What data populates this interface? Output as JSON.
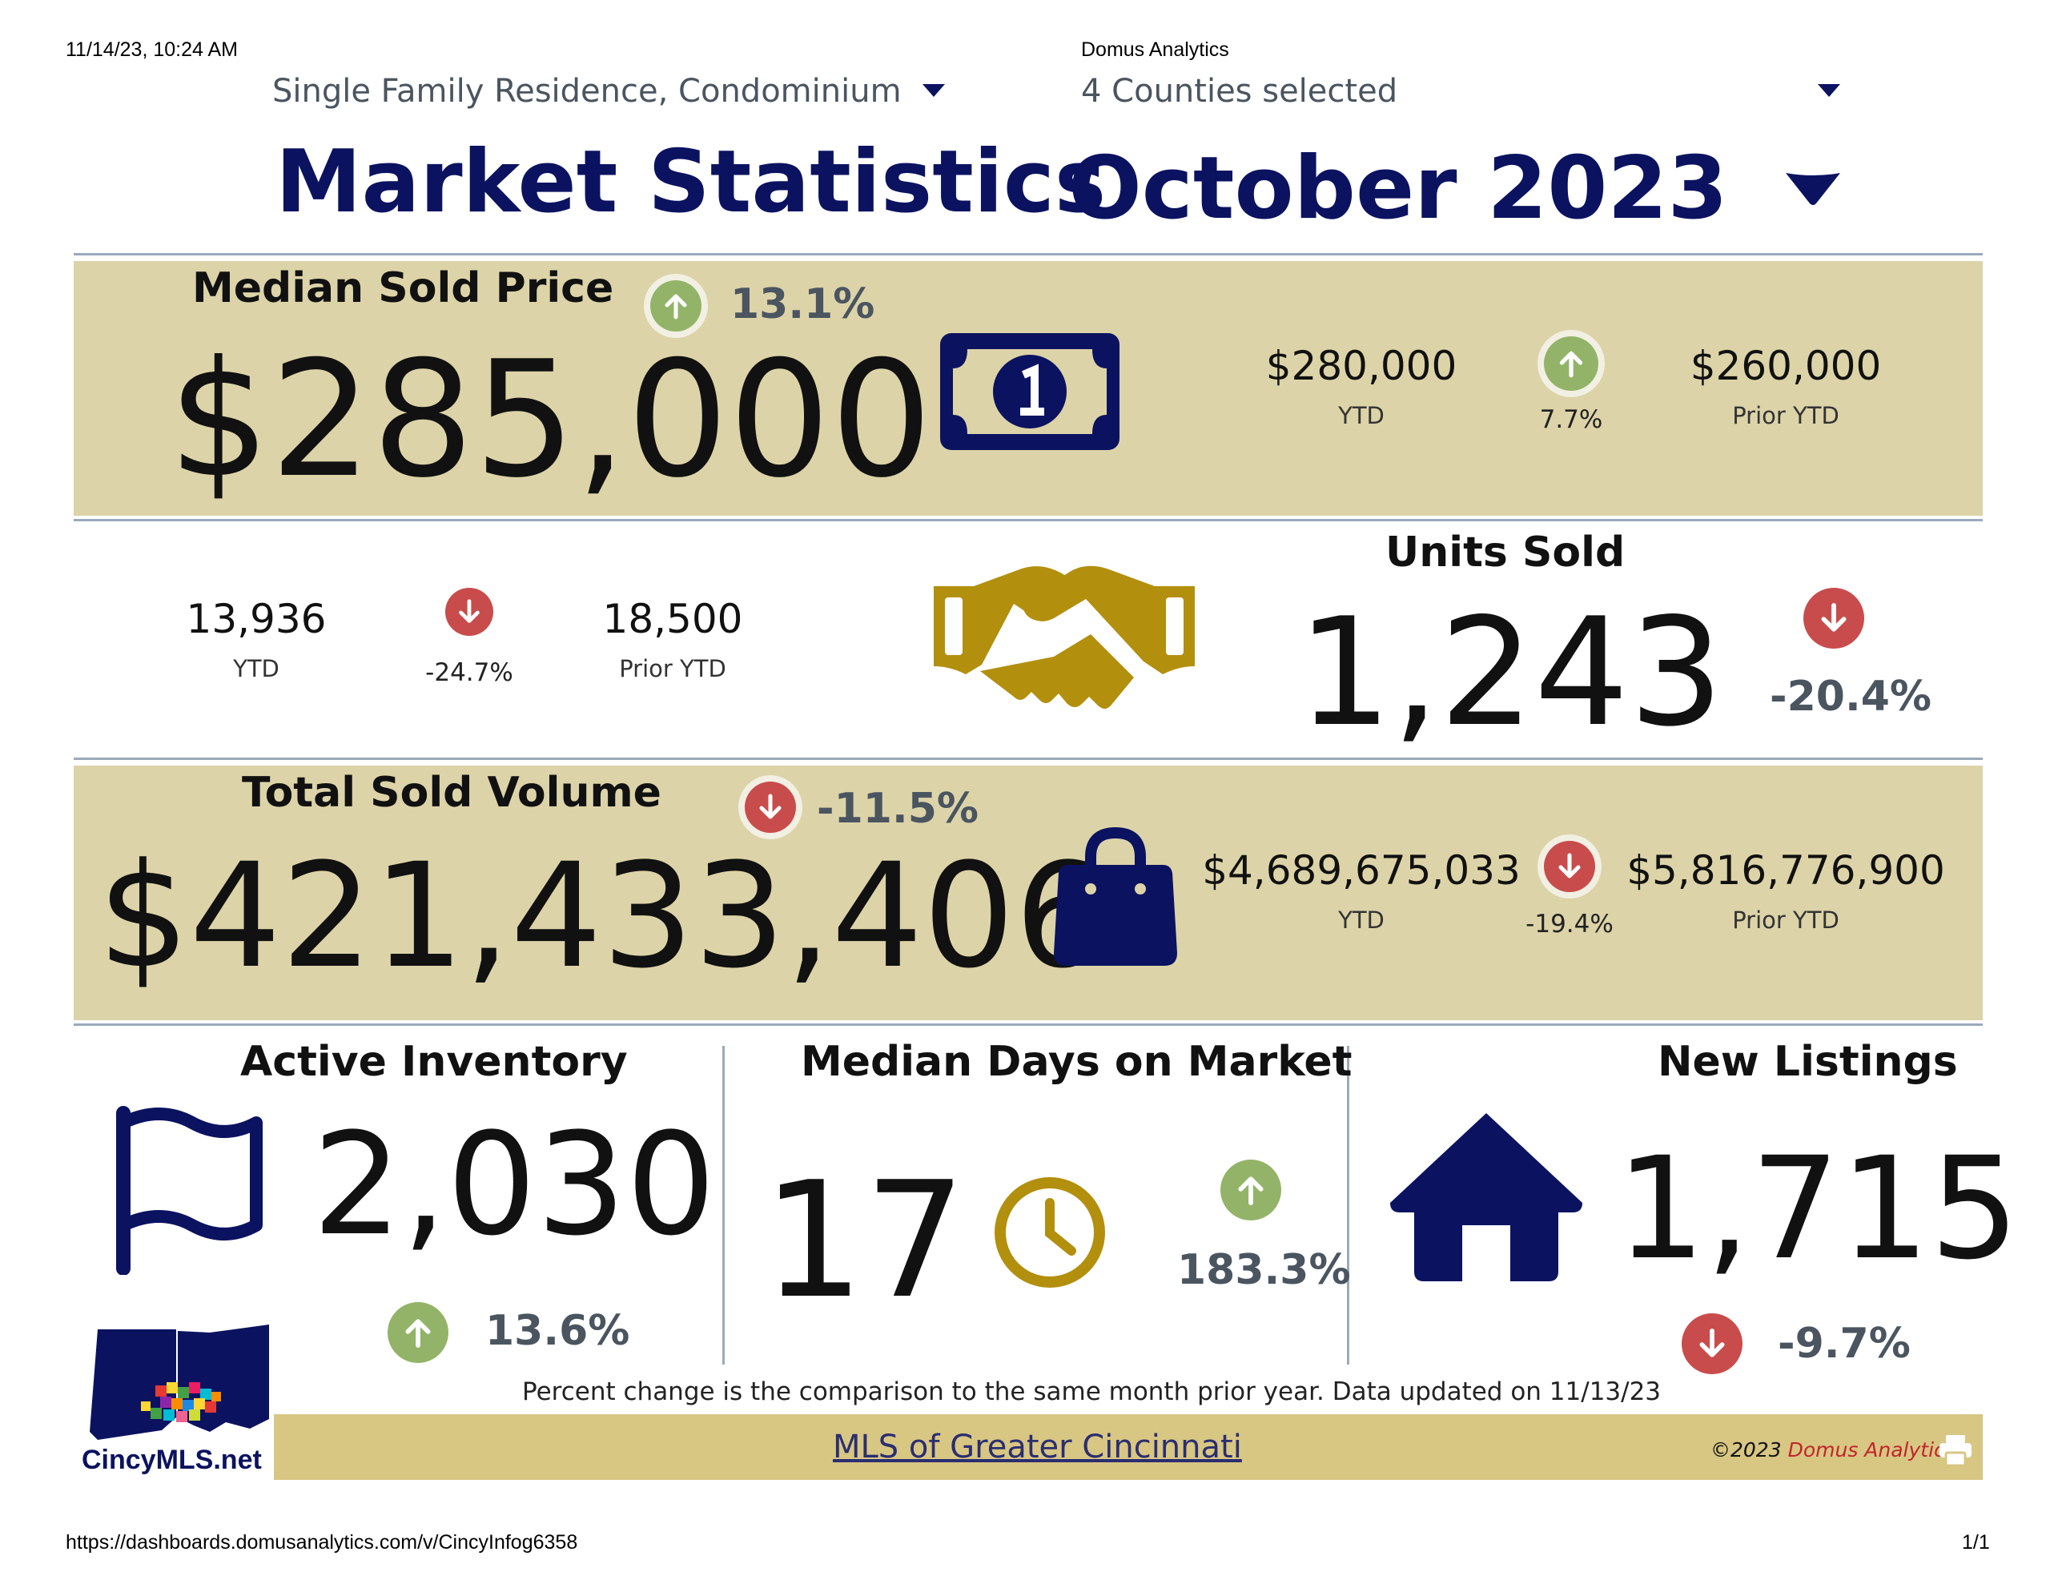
{
  "page_header": {
    "timestamp": "11/14/23, 10:24 AM",
    "site_name": "Domus Analytics",
    "url": "https://dashboards.domusanalytics.com/v/CincyInfog6358",
    "page_count": "1/1"
  },
  "filters": {
    "property_type": "Single Family Residence, Condominium",
    "counties": "4 Counties selected",
    "month": "October 2023"
  },
  "title": "Market Statistics",
  "median_sold_price": {
    "label": "Median Sold Price",
    "value": "$285,000",
    "change": "13.1%",
    "ytd_value": "$280,000",
    "ytd_label": "YTD",
    "ytd_change": "7.7%",
    "prior_ytd_value": "$260,000",
    "prior_ytd_label": "Prior YTD",
    "icon": "dollar-bill-icon"
  },
  "units_sold": {
    "label": "Units Sold",
    "value": "1,243",
    "change": "-20.4%",
    "ytd_value": "13,936",
    "ytd_label": "YTD",
    "ytd_change": "-24.7%",
    "prior_ytd_value": "18,500",
    "prior_ytd_label": "Prior YTD",
    "icon": "handshake-icon"
  },
  "total_sold_volume": {
    "label": "Total Sold Volume",
    "value": "$421,433,406",
    "change": "-11.5%",
    "ytd_value": "$4,689,675,033",
    "ytd_label": "YTD",
    "ytd_change": "-19.4%",
    "prior_ytd_value": "$5,816,776,900",
    "prior_ytd_label": "Prior YTD",
    "icon": "shopping-bag-icon"
  },
  "active_inventory": {
    "label": "Active Inventory",
    "value": "2,030",
    "change": "13.6%",
    "icon": "flag-icon"
  },
  "median_days_on_market": {
    "label": "Median Days on Market",
    "value": "17",
    "change": "183.3%",
    "icon": "clock-icon"
  },
  "new_listings": {
    "label": "New Listings",
    "value": "1,715",
    "change": "-9.7%",
    "icon": "house-icon"
  },
  "footnote": "Percent change is the comparison to the same month prior year. Data updated on 11/13/23",
  "footer": {
    "logo_text": "CincyMLS.net",
    "link_text": "MLS of Greater Cincinnati",
    "copyright_prefix": "©2023",
    "copyright_brand": "Domus Analytics",
    "print_icon": "print-icon"
  },
  "colors": {
    "navy": "#0b1360",
    "band": "#dcd3a8",
    "gold": "#b38f0e",
    "up_green": "#93b468",
    "down_red": "#c94c4c",
    "footer_band": "#d8c683"
  }
}
